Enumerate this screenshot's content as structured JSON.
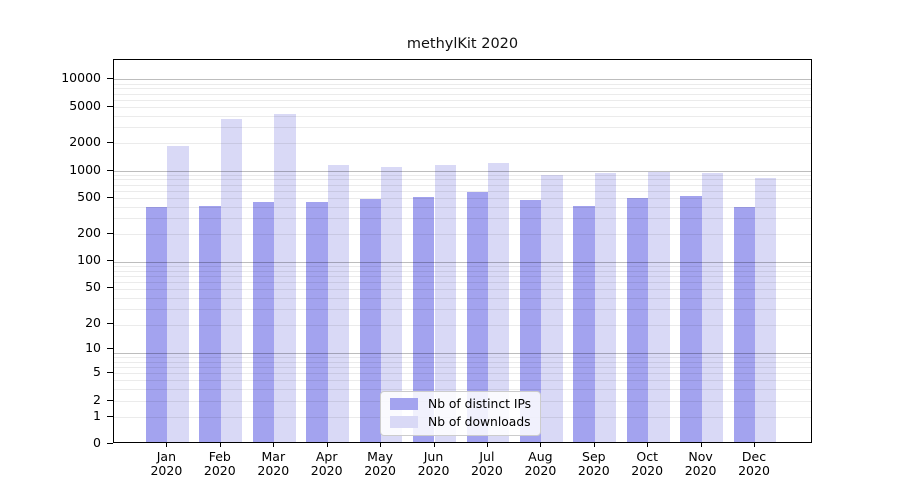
{
  "title": "methylKit 2020",
  "colors": {
    "ips": "#a3a3ef",
    "downloads": "#d9d9f6",
    "spine": "#000000",
    "grid_major": "rgba(0,0,0,0.26)",
    "grid_minor": "rgba(0,0,0,0.08)"
  },
  "legend": {
    "items": [
      {
        "label": "Nb of distinct IPs",
        "color_key": "ips"
      },
      {
        "label": "Nb of downloads",
        "color_key": "downloads"
      }
    ]
  },
  "y_axis": {
    "scale": "log10(1+v)",
    "top_value": 16300,
    "tick_values": [
      10000,
      5000,
      2000,
      1000,
      500,
      200,
      100,
      50,
      20,
      10,
      5,
      2,
      1,
      0
    ],
    "tick_labels": [
      "10000",
      "5000",
      "2000",
      "1000",
      "500",
      "200",
      "100",
      "50",
      "20",
      "10",
      "5",
      "2",
      "1",
      "0"
    ]
  },
  "x_axis": {
    "months": [
      "Jan",
      "Feb",
      "Mar",
      "Apr",
      "May",
      "Jun",
      "Jul",
      "Aug",
      "Sep",
      "Oct",
      "Nov",
      "Dec"
    ],
    "year": "2020"
  },
  "chart_data": {
    "type": "bar",
    "title": "methylKit 2020",
    "categories": [
      "Jan 2020",
      "Feb 2020",
      "Mar 2020",
      "Apr 2020",
      "May 2020",
      "Jun 2020",
      "Jul 2020",
      "Aug 2020",
      "Sep 2020",
      "Oct 2020",
      "Nov 2020",
      "Dec 2020"
    ],
    "series": [
      {
        "name": "Nb of distinct IPs",
        "values": [
          380,
          387,
          428,
          428,
          460,
          491,
          552,
          451,
          388,
          480,
          500,
          381
        ]
      },
      {
        "name": "Nb of downloads",
        "values": [
          1770,
          3460,
          3920,
          1090,
          1050,
          1087,
          1143,
          850,
          903,
          917,
          903,
          796
        ]
      }
    ],
    "xlabel": "",
    "ylabel": "",
    "yscale": "log1p",
    "ylim": [
      0,
      16300
    ],
    "ytick_values": [
      0,
      1,
      2,
      5,
      10,
      20,
      50,
      100,
      200,
      500,
      1000,
      2000,
      5000,
      10000
    ],
    "grid": "both, horizontal only, drawn over bars",
    "legend_position": "lower center"
  }
}
